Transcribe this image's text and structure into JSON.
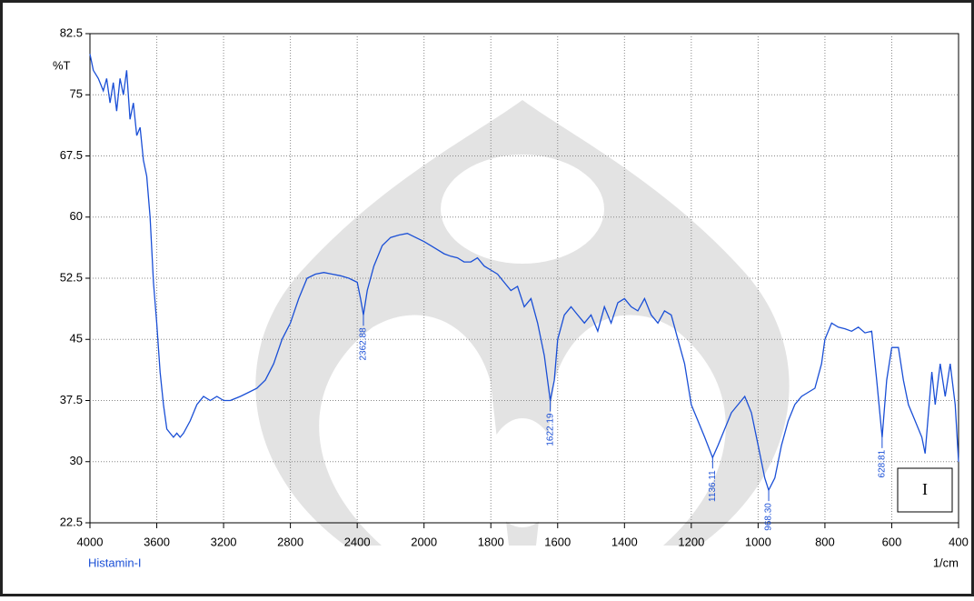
{
  "chart_data": {
    "type": "line",
    "x_label": "1/cm",
    "y_label": "%T",
    "badge": "I",
    "xscale": "tick-spaced",
    "grid": true,
    "xlim": [
      4000,
      400
    ],
    "xticks": [
      4000,
      3600,
      3200,
      2800,
      2400,
      2000,
      1800,
      1600,
      1400,
      1200,
      1000,
      800,
      600,
      400
    ],
    "ylim": [
      22.5,
      82.5
    ],
    "yticks": [
      22.5,
      30,
      37.5,
      45,
      52.5,
      60,
      67.5,
      75,
      82.5
    ],
    "x": [
      4000,
      3980,
      3950,
      3920,
      3900,
      3880,
      3860,
      3840,
      3820,
      3800,
      3780,
      3760,
      3740,
      3720,
      3700,
      3680,
      3660,
      3640,
      3620,
      3600,
      3580,
      3560,
      3540,
      3520,
      3500,
      3480,
      3460,
      3440,
      3400,
      3360,
      3320,
      3280,
      3240,
      3200,
      3160,
      3100,
      3050,
      3000,
      2950,
      2900,
      2850,
      2800,
      2750,
      2700,
      2650,
      2600,
      2550,
      2500,
      2450,
      2400,
      2380,
      2362.88,
      2340,
      2300,
      2250,
      2200,
      2150,
      2100,
      2050,
      2000,
      1980,
      1960,
      1940,
      1920,
      1900,
      1880,
      1860,
      1840,
      1820,
      1800,
      1780,
      1760,
      1740,
      1720,
      1700,
      1680,
      1660,
      1640,
      1622.19,
      1610,
      1600,
      1580,
      1560,
      1540,
      1520,
      1500,
      1480,
      1460,
      1440,
      1420,
      1400,
      1380,
      1360,
      1340,
      1320,
      1300,
      1280,
      1260,
      1240,
      1220,
      1200,
      1180,
      1160,
      1136.11,
      1120,
      1100,
      1080,
      1060,
      1040,
      1020,
      1000,
      980,
      968.3,
      950,
      930,
      910,
      890,
      870,
      850,
      830,
      810,
      800,
      780,
      760,
      740,
      720,
      700,
      680,
      660,
      645,
      628.81,
      615,
      600,
      580,
      565,
      550,
      530,
      510,
      500,
      490,
      480,
      470,
      455,
      440,
      425,
      410,
      400
    ],
    "series": [
      {
        "name": "Histamin-I",
        "color": "#1a4fd6",
        "values": [
          80,
          78,
          77,
          75.5,
          77,
          74,
          76.5,
          73,
          77,
          75,
          78,
          72,
          74,
          70,
          71,
          67,
          65,
          60,
          52,
          47,
          41,
          37,
          34,
          33.5,
          33,
          33.5,
          33,
          33.5,
          35,
          37,
          38,
          37.5,
          38,
          37.5,
          37.5,
          38,
          38.5,
          39,
          40,
          42,
          45,
          47,
          50,
          52.5,
          53,
          53.2,
          53,
          52.8,
          52.5,
          52,
          50,
          48,
          51,
          54,
          56.5,
          57.5,
          57.8,
          58,
          57.5,
          57,
          56.5,
          56,
          55.5,
          55.2,
          55,
          54.5,
          54.5,
          55,
          54,
          53.5,
          53,
          52,
          51,
          51.5,
          49,
          50,
          47,
          43,
          37.5,
          40,
          45,
          48,
          49,
          48,
          47,
          48,
          46,
          49,
          47,
          49.5,
          50,
          49,
          48.5,
          50,
          48,
          47,
          48.5,
          48,
          45,
          42,
          37,
          35,
          33,
          30.5,
          32,
          34,
          36,
          37,
          38,
          36,
          32,
          28,
          26.5,
          28,
          32,
          35,
          37,
          38,
          38.5,
          39,
          42,
          45,
          47,
          46.5,
          46.3,
          46,
          46.5,
          45.8,
          46,
          40,
          33,
          40,
          44,
          44,
          40,
          37,
          35,
          33,
          31,
          36,
          41,
          37,
          42,
          38,
          42,
          37,
          30
        ]
      }
    ],
    "annotations": [
      {
        "x": 2362.88,
        "y": 48
      },
      {
        "x": 1622.19,
        "y": 37.5
      },
      {
        "x": 1136.11,
        "y": 30.5
      },
      {
        "x": 968.3,
        "y": 26.5,
        "label": "968.30"
      },
      {
        "x": 628.81,
        "y": 33
      }
    ]
  }
}
